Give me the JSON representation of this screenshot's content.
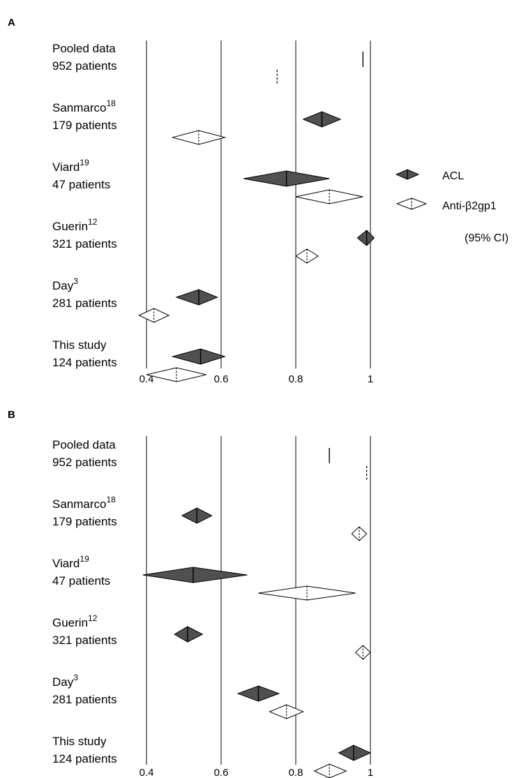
{
  "chart_data": [
    {
      "type": "forest",
      "panel_label": "A",
      "xlim": [
        0.4,
        1.0
      ],
      "x_ticks": [
        "0.4",
        "0.6",
        "0.8",
        "1"
      ],
      "grid": true,
      "studies": [
        {
          "name": "Pooled data",
          "sup": "",
          "patients": "952 patients",
          "acl": {
            "est": 0.98,
            "pooled": true
          },
          "anti_b2gp1": {
            "est": 0.75,
            "pooled": true
          }
        },
        {
          "name": "Sanmarco",
          "sup": "18",
          "patients": "179 patients",
          "acl": {
            "est": 0.87,
            "lo": 0.82,
            "hi": 0.92
          },
          "anti_b2gp1": {
            "est": 0.54,
            "lo": 0.47,
            "hi": 0.61
          }
        },
        {
          "name": "Viard",
          "sup": "19",
          "patients": "47 patients",
          "acl": {
            "est": 0.775,
            "lo": 0.66,
            "hi": 0.89
          },
          "anti_b2gp1": {
            "est": 0.89,
            "lo": 0.8,
            "hi": 0.98
          }
        },
        {
          "name": "Guerin",
          "sup": "12",
          "patients": "321 patients",
          "acl": {
            "est": 0.99,
            "lo": 0.965,
            "hi": 1.01
          },
          "anti_b2gp1": {
            "est": 0.83,
            "lo": 0.8,
            "hi": 0.86
          }
        },
        {
          "name": "Day",
          "sup": "3",
          "patients": "281 patients",
          "acl": {
            "est": 0.54,
            "lo": 0.48,
            "hi": 0.59
          },
          "anti_b2gp1": {
            "est": 0.42,
            "lo": 0.38,
            "hi": 0.46
          }
        },
        {
          "name": "This study",
          "sup": "",
          "patients": "124 patients",
          "acl": {
            "est": 0.545,
            "lo": 0.47,
            "hi": 0.61
          },
          "anti_b2gp1": {
            "est": 0.48,
            "lo": 0.4,
            "hi": 0.56
          }
        }
      ]
    },
    {
      "type": "forest",
      "panel_label": "B",
      "xlim": [
        0.4,
        1.0
      ],
      "x_ticks": [
        "0.4",
        "0.6",
        "0.8",
        "1"
      ],
      "grid": true,
      "studies": [
        {
          "name": "Pooled data",
          "sup": "",
          "patients": "952 patients",
          "acl": {
            "est": 0.89,
            "pooled": true
          },
          "anti_b2gp1": {
            "est": 0.99,
            "pooled": true
          }
        },
        {
          "name": "Sanmarco",
          "sup": "18",
          "patients": "179 patients",
          "acl": {
            "est": 0.535,
            "lo": 0.495,
            "hi": 0.575
          },
          "anti_b2gp1": {
            "est": 0.97,
            "lo": 0.95,
            "hi": 0.99
          }
        },
        {
          "name": "Viard",
          "sup": "19",
          "patients": "47 patients",
          "acl": {
            "est": 0.525,
            "lo": 0.39,
            "hi": 0.67
          },
          "anti_b2gp1": {
            "est": 0.83,
            "lo": 0.7,
            "hi": 0.96
          }
        },
        {
          "name": "Guerin",
          "sup": "12",
          "patients": "321 patients",
          "acl": {
            "est": 0.51,
            "lo": 0.475,
            "hi": 0.55
          },
          "anti_b2gp1": {
            "est": 0.98,
            "lo": 0.96,
            "hi": 1.0
          }
        },
        {
          "name": "Day",
          "sup": "3",
          "patients": "281 patients",
          "acl": {
            "est": 0.7,
            "lo": 0.645,
            "hi": 0.755
          },
          "anti_b2gp1": {
            "est": 0.775,
            "lo": 0.73,
            "hi": 0.82
          }
        },
        {
          "name": "This study",
          "sup": "",
          "patients": "124 patients",
          "acl": {
            "est": 0.955,
            "lo": 0.915,
            "hi": 1.0
          },
          "anti_b2gp1": {
            "est": 0.89,
            "lo": 0.85,
            "hi": 0.935
          }
        }
      ]
    }
  ],
  "legend": {
    "position": "right",
    "items": [
      {
        "label": "ACL",
        "fill": "#505050"
      },
      {
        "label": "Anti-β2gp1",
        "fill": "#ffffff"
      }
    ],
    "note": "(95% CI)"
  },
  "colors": {
    "acl_fill": "#505050",
    "anti_fill": "#ffffff",
    "stroke": "#000000"
  }
}
